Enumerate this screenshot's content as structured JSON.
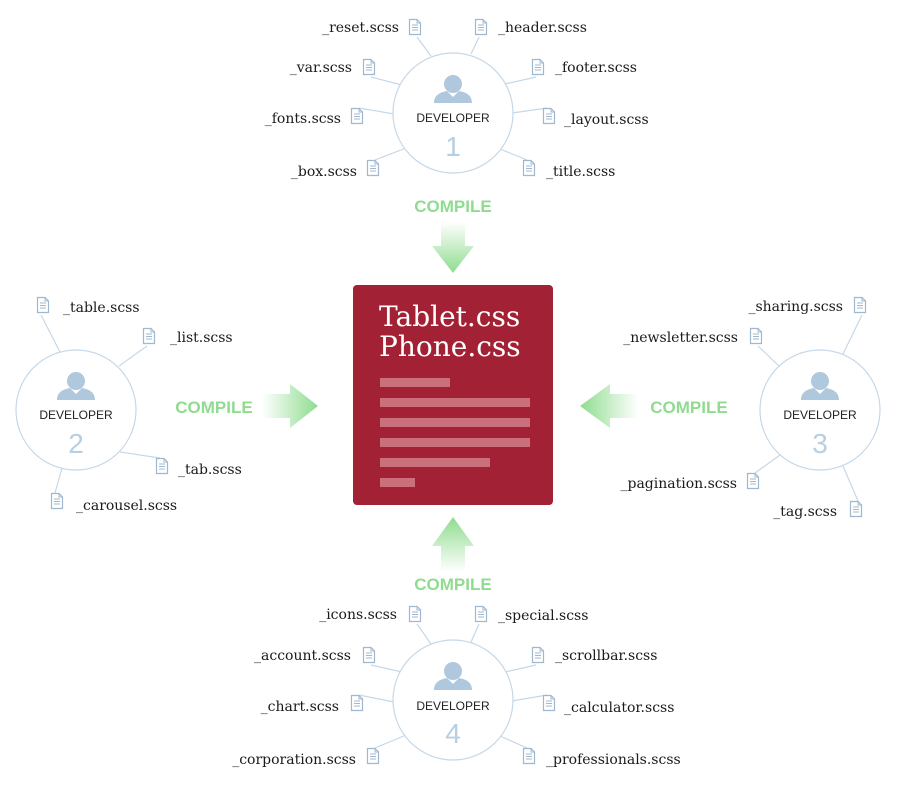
{
  "colors": {
    "output_box": "#a32134",
    "output_lines": "#c9707c",
    "dev_circle": "#c5d8e8",
    "person_icon": "#b0c8de",
    "file_icon": "#9fb8d0",
    "connector": "#c5d8e8",
    "compile_text": "#8fdc8f",
    "arrow": "#8fdc8f"
  },
  "output": {
    "files": [
      "Tablet.css",
      "Phone.css"
    ]
  },
  "compile_label": "COMPILE",
  "developers": [
    {
      "label": "DEVELOPER",
      "number": "1",
      "icon": "person-icon",
      "files": [
        "_reset.scss",
        "_header.scss",
        "_var.scss",
        "_footer.scss",
        "_fonts.scss",
        "_layout.scss",
        "_box.scss",
        "_title.scss"
      ]
    },
    {
      "label": "DEVELOPER",
      "number": "2",
      "icon": "person-icon",
      "files": [
        "_table.scss",
        "_list.scss",
        "_tab.scss",
        "_carousel.scss"
      ]
    },
    {
      "label": "DEVELOPER",
      "number": "3",
      "icon": "person-icon",
      "files": [
        "_sharing.scss",
        "_newsletter.scss",
        "_pagination.scss",
        "_tag.scss"
      ]
    },
    {
      "label": "DEVELOPER",
      "number": "4",
      "icon": "person-icon",
      "files": [
        "_icons.scss",
        "_special.scss",
        "_account.scss",
        "_scrollbar.scss",
        "_chart.scss",
        "_calculator.scss",
        "_corporation.scss",
        "_professionals.scss"
      ]
    }
  ]
}
